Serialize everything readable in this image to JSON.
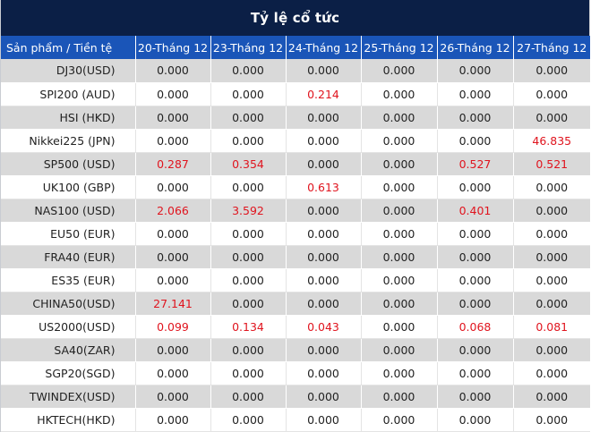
{
  "title": "Tỷ lệ cổ tức",
  "columns": [
    "Sản phẩm / Tiền tệ",
    "20-Tháng 12",
    "23-Tháng 12",
    "24-Tháng 12",
    "25-Tháng 12",
    "26-Tháng 12",
    "27-Tháng 12"
  ],
  "rows": [
    {
      "product": "DJ30(USD)",
      "values": [
        "0.000",
        "0.000",
        "0.000",
        "0.000",
        "0.000",
        "0.000"
      ]
    },
    {
      "product": "SPI200 (AUD)",
      "values": [
        "0.000",
        "0.000",
        "0.214",
        "0.000",
        "0.000",
        "0.000"
      ]
    },
    {
      "product": "HSI (HKD)",
      "values": [
        "0.000",
        "0.000",
        "0.000",
        "0.000",
        "0.000",
        "0.000"
      ]
    },
    {
      "product": "Nikkei225 (JPN)",
      "values": [
        "0.000",
        "0.000",
        "0.000",
        "0.000",
        "0.000",
        "46.835"
      ]
    },
    {
      "product": "SP500 (USD)",
      "values": [
        "0.287",
        "0.354",
        "0.000",
        "0.000",
        "0.527",
        "0.521"
      ]
    },
    {
      "product": "UK100 (GBP)",
      "values": [
        "0.000",
        "0.000",
        "0.613",
        "0.000",
        "0.000",
        "0.000"
      ]
    },
    {
      "product": "NAS100 (USD)",
      "values": [
        "2.066",
        "3.592",
        "0.000",
        "0.000",
        "0.401",
        "0.000"
      ]
    },
    {
      "product": "EU50 (EUR)",
      "values": [
        "0.000",
        "0.000",
        "0.000",
        "0.000",
        "0.000",
        "0.000"
      ]
    },
    {
      "product": "FRA40 (EUR)",
      "values": [
        "0.000",
        "0.000",
        "0.000",
        "0.000",
        "0.000",
        "0.000"
      ]
    },
    {
      "product": "ES35 (EUR)",
      "values": [
        "0.000",
        "0.000",
        "0.000",
        "0.000",
        "0.000",
        "0.000"
      ]
    },
    {
      "product": "CHINA50(USD)",
      "values": [
        "27.141",
        "0.000",
        "0.000",
        "0.000",
        "0.000",
        "0.000"
      ]
    },
    {
      "product": "US2000(USD)",
      "values": [
        "0.099",
        "0.134",
        "0.043",
        "0.000",
        "0.068",
        "0.081"
      ]
    },
    {
      "product": "SA40(ZAR)",
      "values": [
        "0.000",
        "0.000",
        "0.000",
        "0.000",
        "0.000",
        "0.000"
      ]
    },
    {
      "product": "SGP20(SGD)",
      "values": [
        "0.000",
        "0.000",
        "0.000",
        "0.000",
        "0.000",
        "0.000"
      ]
    },
    {
      "product": "TWINDEX(USD)",
      "values": [
        "0.000",
        "0.000",
        "0.000",
        "0.000",
        "0.000",
        "0.000"
      ]
    },
    {
      "product": "HKTECH(HKD)",
      "values": [
        "0.000",
        "0.000",
        "0.000",
        "0.000",
        "0.000",
        "0.000"
      ]
    }
  ],
  "colors": {
    "header_bg": "#0b1f46",
    "column_header_bg": "#1a55b8",
    "nonzero_text": "#e0141e",
    "stripe": "#d9d9d9"
  }
}
